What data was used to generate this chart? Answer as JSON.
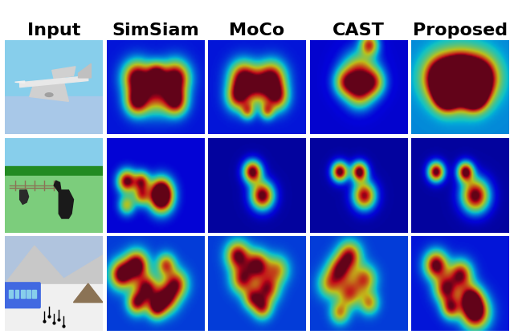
{
  "title_labels": [
    "Input",
    "SimSiam",
    "MoCo",
    "CAST",
    "Proposed"
  ],
  "title_fontsize": 16,
  "title_fontweight": "bold",
  "fig_width": 6.4,
  "fig_height": 4.16,
  "dpi": 100,
  "background_color": "#ffffff"
}
